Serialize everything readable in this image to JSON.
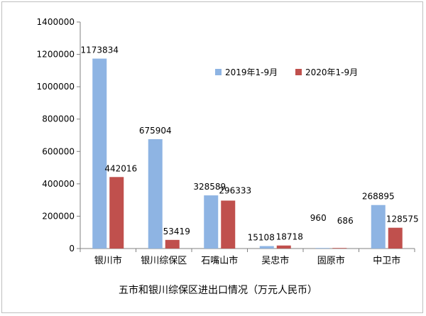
{
  "chart_data": {
    "type": "bar",
    "title": "五市和银川综保区进出口情况（万元人民币）",
    "categories": [
      "银川市",
      "银川综保区",
      "石嘴山市",
      "吴忠市",
      "固原市",
      "中卫市"
    ],
    "series": [
      {
        "name": "2019年1-9月",
        "color": "#8EB4E3",
        "values": [
          1173834,
          675904,
          328589,
          15108,
          960,
          268895
        ]
      },
      {
        "name": "2020年1-9月",
        "color": "#C0504D",
        "values": [
          442016,
          53419,
          296333,
          18718,
          686,
          128575
        ]
      }
    ],
    "ylim": [
      0,
      1400000
    ],
    "yticks": [
      0,
      200000,
      400000,
      600000,
      800000,
      1000000,
      1200000,
      1400000
    ],
    "grid": false,
    "legend_position": "top-right"
  }
}
